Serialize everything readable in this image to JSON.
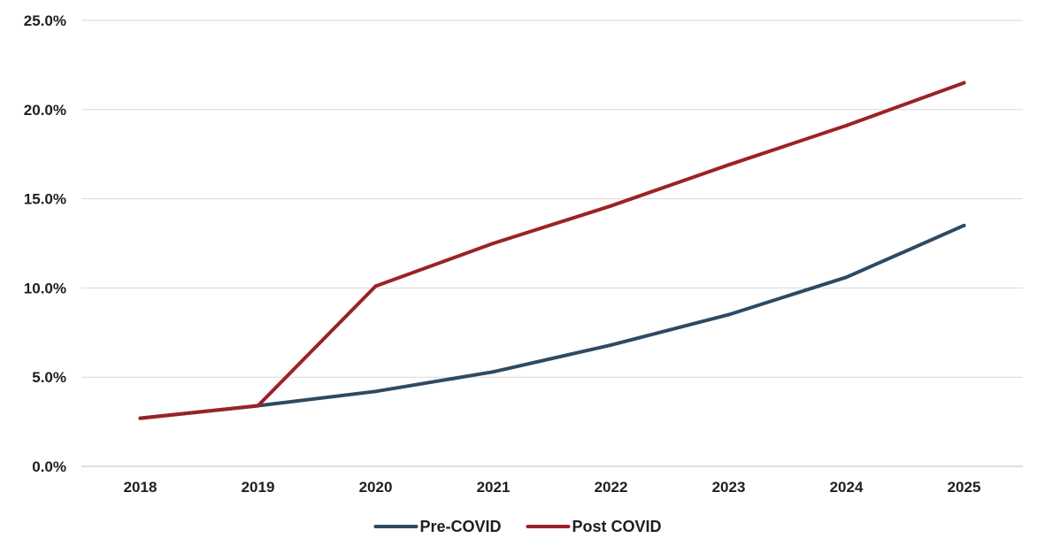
{
  "chart_data": {
    "type": "line",
    "title": "",
    "xlabel": "",
    "ylabel": "",
    "x": [
      "2018",
      "2019",
      "2020",
      "2021",
      "2022",
      "2023",
      "2024",
      "2025"
    ],
    "y_ticks": [
      "0.0%",
      "5.0%",
      "10.0%",
      "15.0%",
      "20.0%",
      "25.0%"
    ],
    "ylim": [
      0,
      25
    ],
    "grid": true,
    "legend_position": "bottom-center",
    "series": [
      {
        "name": "Pre-COVID",
        "color": "#2e4a62",
        "values": [
          2.7,
          3.4,
          4.2,
          5.3,
          6.8,
          8.5,
          10.6,
          13.5
        ]
      },
      {
        "name": "Post COVID",
        "color": "#9b2226",
        "values": [
          2.7,
          3.4,
          10.1,
          12.5,
          14.6,
          16.9,
          19.1,
          21.5
        ]
      }
    ]
  }
}
